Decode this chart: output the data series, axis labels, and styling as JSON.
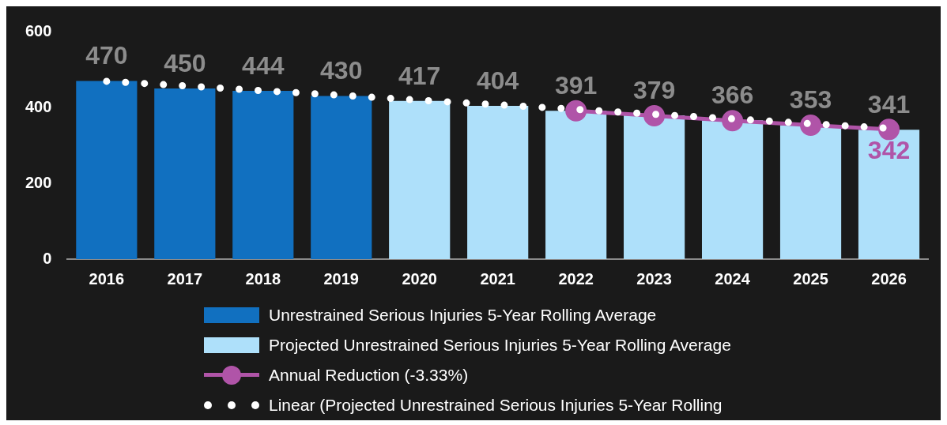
{
  "chart_data": {
    "type": "bar",
    "categories": [
      "2016",
      "2017",
      "2018",
      "2019",
      "2020",
      "2021",
      "2022",
      "2023",
      "2024",
      "2025",
      "2026"
    ],
    "ylim": [
      0,
      600
    ],
    "yticks": [
      0,
      200,
      400,
      600
    ],
    "grid": false,
    "legend": "bottom",
    "series": [
      {
        "name": "Unrestrained Serious Injuries 5-Year Rolling Average",
        "color": "#1170c0",
        "values": [
          470,
          450,
          444,
          430,
          null,
          null,
          null,
          null,
          null,
          null,
          null
        ],
        "value_labels": [
          "470",
          "450",
          "444",
          "430",
          null,
          null,
          null,
          null,
          null,
          null,
          null
        ]
      },
      {
        "name": "Projected Unrestrained Serious Injuries 5-Year Rolling Average",
        "color": "#aee0fa",
        "values": [
          null,
          null,
          null,
          null,
          417,
          404,
          391,
          379,
          366,
          353,
          341
        ],
        "value_labels": [
          null,
          null,
          null,
          null,
          "417",
          "404",
          "391",
          "379",
          "366",
          "353",
          "341"
        ]
      },
      {
        "name": "Annual Reduction (-3.33%)",
        "type": "line",
        "color": "#b054a8",
        "marker": "circle",
        "line_style": "solid",
        "values": [
          null,
          null,
          null,
          null,
          null,
          null,
          391,
          378,
          365,
          353,
          342
        ],
        "value_labels": [
          null,
          null,
          null,
          null,
          null,
          null,
          null,
          null,
          null,
          null,
          "342"
        ]
      },
      {
        "name": "Linear (Projected Unrestrained Serious Injuries 5-Year Rolling",
        "type": "line",
        "color": "#ffffff",
        "marker": "none",
        "line_style": "dotted",
        "values": [
          469,
          457,
          444,
          432,
          419,
          407,
          395,
          382,
          370,
          357,
          345
        ]
      }
    ]
  }
}
